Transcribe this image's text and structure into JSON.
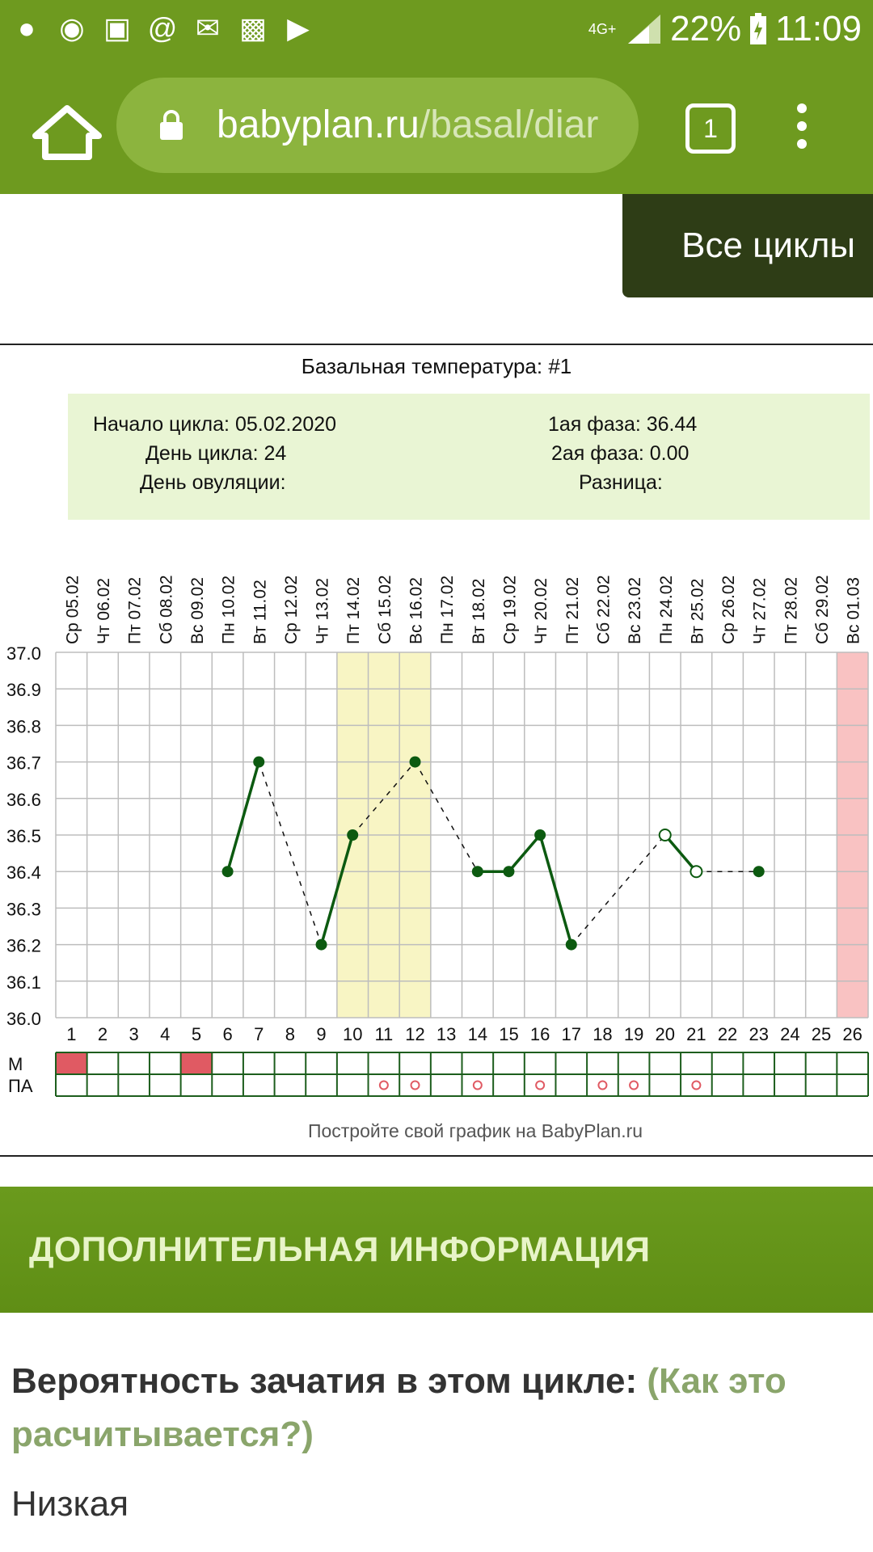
{
  "status_bar": {
    "network": "4G+",
    "battery": "22%",
    "time": "11:09",
    "app_icons": [
      "pinterest-icon",
      "chromecast-icon",
      "instagram-icon",
      "at-icon",
      "messages-icon",
      "gallery-icon",
      "video-icon"
    ]
  },
  "browser": {
    "url_host": "babyplan.ru",
    "url_path": "/basal/diar",
    "tab_count": "1"
  },
  "all_cycles_button": "Все циклы",
  "chart_data": {
    "type": "line",
    "title": "Базальная температура: #1",
    "info": {
      "cycle_start": "Начало цикла: 05.02.2020",
      "cycle_day": "День цикла: 24",
      "ovulation_day": "День овуляции:",
      "phase1": "1ая фаза: 36.44",
      "phase2": "2ая фаза: 0.00",
      "difference": "Разница:"
    },
    "dates": [
      "Ср 05.02",
      "Чт 06.02",
      "Пт 07.02",
      "Сб 08.02",
      "Вс 09.02",
      "Пн 10.02",
      "Вт 11.02",
      "Ср 12.02",
      "Чт 13.02",
      "Пт 14.02",
      "Сб 15.02",
      "Вс 16.02",
      "Пн 17.02",
      "Вт 18.02",
      "Ср 19.02",
      "Чт 20.02",
      "Пт 21.02",
      "Сб 22.02",
      "Вс 23.02",
      "Пн 24.02",
      "Вт 25.02",
      "Ср 26.02",
      "Чт 27.02",
      "Пт 28.02",
      "Сб 29.02",
      "Вс 01.03"
    ],
    "days": [
      "1",
      "2",
      "3",
      "4",
      "5",
      "6",
      "7",
      "8",
      "9",
      "10",
      "11",
      "12",
      "13",
      "14",
      "15",
      "16",
      "17",
      "18",
      "19",
      "20",
      "21",
      "22",
      "23",
      "24",
      "25",
      "26"
    ],
    "y_ticks": [
      "37.0",
      "36.9",
      "36.8",
      "36.7",
      "36.6",
      "36.5",
      "36.4",
      "36.3",
      "36.2",
      "36.1",
      "36.0"
    ],
    "ylim": [
      36.0,
      37.0
    ],
    "points": [
      {
        "day": 6,
        "temp": 36.4,
        "marker": "filled"
      },
      {
        "day": 7,
        "temp": 36.7,
        "marker": "filled"
      },
      {
        "day": 9,
        "temp": 36.2,
        "marker": "filled"
      },
      {
        "day": 10,
        "temp": 36.5,
        "marker": "filled"
      },
      {
        "day": 12,
        "temp": 36.7,
        "marker": "filled"
      },
      {
        "day": 14,
        "temp": 36.4,
        "marker": "filled"
      },
      {
        "day": 15,
        "temp": 36.4,
        "marker": "filled"
      },
      {
        "day": 16,
        "temp": 36.5,
        "marker": "filled"
      },
      {
        "day": 17,
        "temp": 36.2,
        "marker": "filled"
      },
      {
        "day": 20,
        "temp": 36.5,
        "marker": "open"
      },
      {
        "day": 21,
        "temp": 36.4,
        "marker": "open"
      },
      {
        "day": 23,
        "temp": 36.4,
        "marker": "filled"
      }
    ],
    "solid_segments": [
      [
        6,
        7
      ],
      [
        9,
        10
      ],
      [
        14,
        15
      ],
      [
        15,
        16
      ],
      [
        16,
        17
      ],
      [
        20,
        21
      ]
    ],
    "dashed_segments": [
      [
        7,
        9
      ],
      [
        10,
        12
      ],
      [
        12,
        14
      ],
      [
        17,
        20
      ],
      [
        21,
        23
      ]
    ],
    "highlight_days": [
      10,
      11,
      12
    ],
    "highlight_color": "#f8f5c4",
    "period_day": 26,
    "period_color": "#f9c2c2",
    "row_labels": [
      "М",
      "ПА"
    ],
    "menstruation_days": [
      1,
      5
    ],
    "menstruation_color": "#e05a63",
    "intercourse_days": [
      11,
      12,
      14,
      16,
      18,
      19,
      21
    ],
    "footer": "Постройте свой график на BabyPlan.ru",
    "line_color": "#0c5a10",
    "grid": true
  },
  "section_header": "ДОПОЛНИТЕЛЬНАЯ ИНФОРМАЦИЯ",
  "probability": {
    "label": "Вероятность зачатия в этом цикле:",
    "link": "(Как это расчитывается?)",
    "value": "Низкая"
  },
  "colors": {
    "toolbar": "#6e9a1f",
    "urlbar": "#8cb43e",
    "button_dark": "#2e3d16",
    "info_bg": "#e9f5d4"
  }
}
